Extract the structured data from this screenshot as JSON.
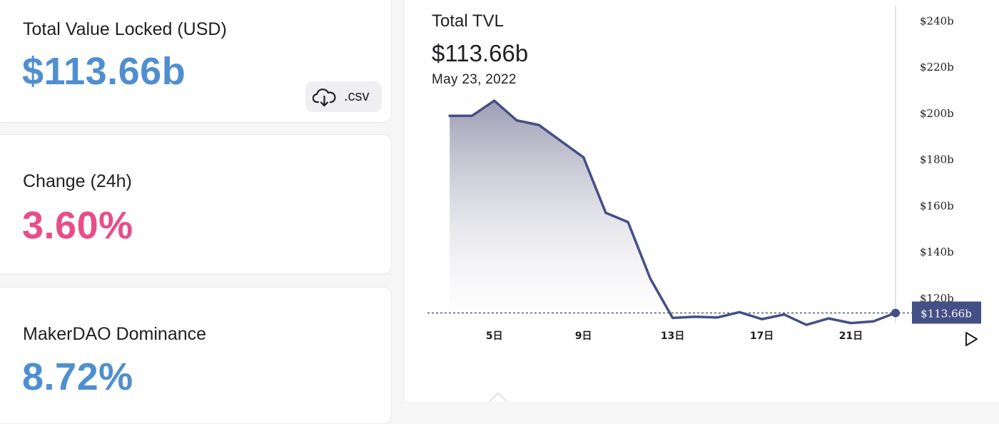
{
  "cards": {
    "tvl": {
      "label": "Total Value Locked (USD)",
      "value": "$113.66b",
      "csv_label": ".csv",
      "value_color": "#4f8fcf"
    },
    "change": {
      "label": "Change (24h)",
      "value": "3.60%",
      "value_color": "#e84d8a"
    },
    "dominance": {
      "label": "MakerDAO Dominance",
      "value": "8.72%",
      "value_color": "#4f8fcf"
    }
  },
  "chart": {
    "title": "Total TVL",
    "value": "$113.66b",
    "date": "May 23, 2022",
    "last_label": "$113.66b",
    "line_color": "#444f86"
  },
  "icons": {
    "download": "cloud-download-icon",
    "play": "play-icon"
  },
  "chart_data": {
    "type": "area",
    "title": "Total TVL",
    "xlabel": "",
    "ylabel": "",
    "x_ticks": [
      "5日",
      "9日",
      "13日",
      "17日",
      "21日"
    ],
    "y_ticks": [
      "$120b",
      "$140b",
      "$160b",
      "$180b",
      "$200b",
      "$220b",
      "$240b"
    ],
    "y_range": [
      107,
      246
    ],
    "x_range": [
      2,
      23
    ],
    "grid": false,
    "series": [
      {
        "x": [
          3,
          4,
          5,
          6,
          7,
          8,
          9,
          10,
          11,
          12,
          13,
          14,
          15,
          16,
          17,
          18,
          19,
          20,
          21,
          22,
          23
        ],
        "y": [
          199,
          199,
          205.5,
          197,
          195,
          188,
          181,
          157,
          153,
          128.5,
          111.5,
          112,
          111.7,
          114,
          111,
          113,
          108.5,
          111.3,
          109.3,
          110,
          113.66
        ]
      }
    ],
    "reference_line": 113.66
  }
}
